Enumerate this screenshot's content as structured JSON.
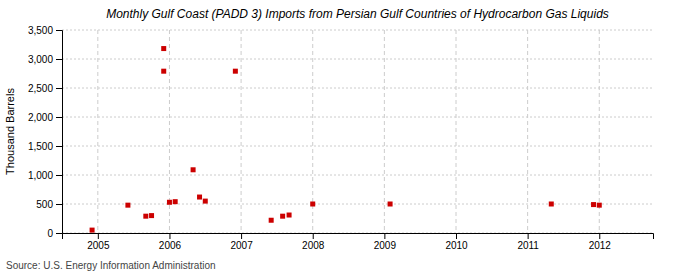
{
  "chart_data": {
    "type": "scatter",
    "title": "Monthly Gulf Coast (PADD 3) Imports from Persian Gulf Countries of Hydrocarbon Gas Liquids",
    "ylabel": "Thousand Barrels",
    "annotations": [
      "Source: U.S. Energy Information Administration"
    ],
    "color": "#CC0000",
    "marker": "square",
    "grid": true,
    "xlim": [
      2004.5,
      2012.75
    ],
    "ylim": [
      0,
      3500
    ],
    "xticks": [
      2005,
      2006,
      2007,
      2008,
      2009,
      2010,
      2011,
      2012
    ],
    "yticks": [
      0,
      500,
      {
        "value": 1000,
        "label": "1,000"
      },
      {
        "value": 1500,
        "label": "1,500"
      },
      {
        "value": 2000,
        "label": "2,000"
      },
      {
        "value": 2500,
        "label": "2,500"
      },
      {
        "value": 3000,
        "label": "3,000"
      },
      {
        "value": 3500,
        "label": "3,500"
      }
    ],
    "x": [
      2004.92,
      2005.42,
      2005.67,
      2005.75,
      2005.92,
      2005.92,
      2006.0,
      2006.08,
      2006.33,
      2006.42,
      2006.5,
      2006.92,
      2007.42,
      2007.58,
      2007.67,
      2008.0,
      2009.08,
      2011.33,
      2011.92,
      2012.0
    ],
    "y": [
      50,
      480,
      290,
      300,
      3180,
      2790,
      530,
      540,
      1090,
      620,
      550,
      2790,
      220,
      290,
      310,
      500,
      500,
      500,
      490,
      480
    ]
  }
}
